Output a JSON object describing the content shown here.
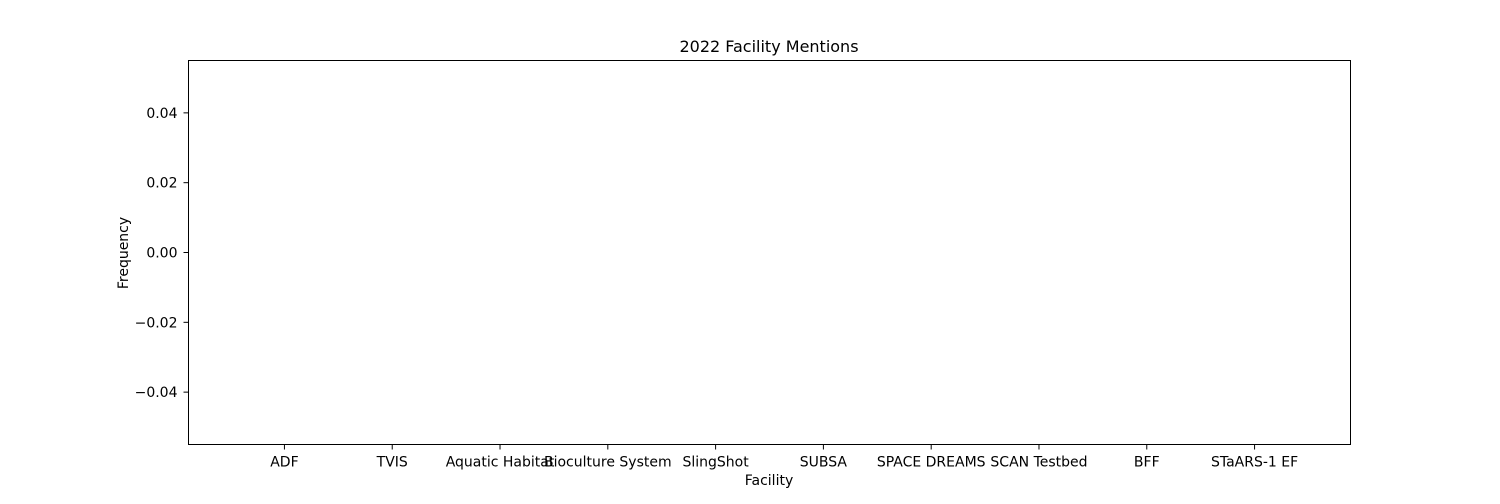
{
  "chart_data": {
    "type": "bar",
    "title": "2022 Facility Mentions",
    "xlabel": "Facility",
    "ylabel": "Frequency",
    "categories": [
      "ADF",
      "TVIS",
      "Aquatic Habitat",
      "Bioculture System",
      "SlingShot",
      "SUBSA",
      "SPACE DREAMS",
      "SCAN Testbed",
      "BFF",
      "STaARS-1 EF"
    ],
    "values": [
      0,
      0,
      0,
      0,
      0,
      0,
      0,
      0,
      0,
      0
    ],
    "ylim": [
      -0.055,
      0.055
    ],
    "yticks": [
      -0.04,
      -0.02,
      0.0,
      0.02,
      0.04
    ],
    "ytick_labels": [
      "−0.04",
      "−0.02",
      "0.00",
      "0.02",
      "0.04"
    ],
    "grid": false,
    "legend": "none",
    "bar_color": "#1f77b4"
  }
}
